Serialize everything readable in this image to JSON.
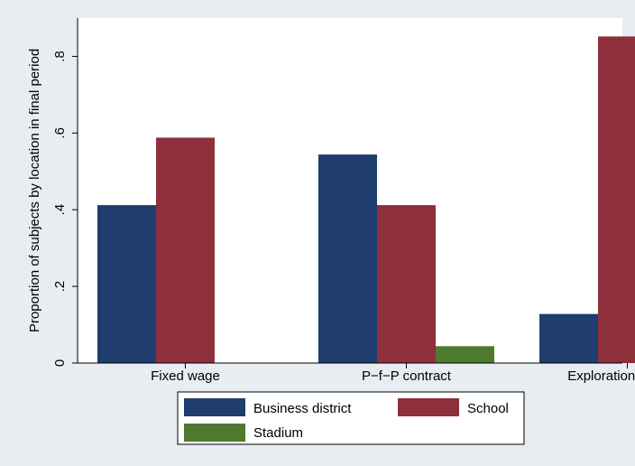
{
  "chart_data": {
    "type": "bar",
    "ylabel": "Proportion of subjects by location in final period",
    "xlabel": "",
    "ylim": [
      0,
      0.9
    ],
    "yticks": [
      {
        "value": 0,
        "label": "0"
      },
      {
        "value": 0.2,
        "label": ".2"
      },
      {
        "value": 0.4,
        "label": ".4"
      },
      {
        "value": 0.6,
        "label": ".6"
      },
      {
        "value": 0.8,
        "label": ".8"
      }
    ],
    "categories": [
      "Fixed wage",
      "P−f−P contract",
      "Exploration contract"
    ],
    "series": [
      {
        "name": "Business district",
        "color": "#1f3d6e",
        "values": [
          0.412,
          0.544,
          0.128
        ]
      },
      {
        "name": "School",
        "color": "#8e2f3c",
        "values": [
          0.588,
          0.412,
          0.852
        ]
      },
      {
        "name": "Stadium",
        "color": "#4e7a30",
        "values": [
          0.0,
          0.044,
          0.022
        ]
      }
    ],
    "legend": {
      "position": "bottom",
      "columns": 2
    },
    "grid": false
  }
}
